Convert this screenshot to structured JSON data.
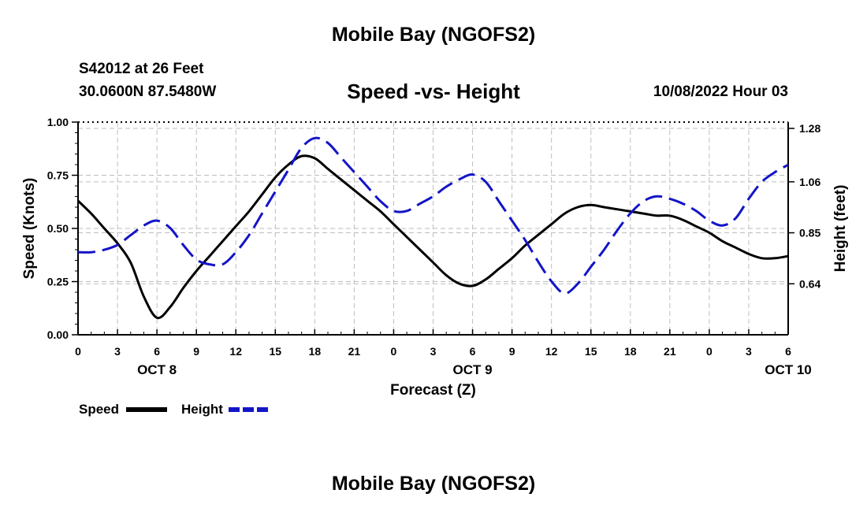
{
  "header": {
    "title": "Mobile Bay (NGOFS2)",
    "station": "S42012 at 26 Feet",
    "coords": "30.0600N  87.5480W",
    "subtitle": "Speed -vs- Height",
    "datetime": "10/08/2022 Hour 03"
  },
  "footer": {
    "title": "Mobile Bay (NGOFS2)"
  },
  "chart_data": {
    "type": "line",
    "title": "Speed -vs- Height",
    "xlabel": "Forecast (Z)",
    "ylabel_left": "Speed (Knots)",
    "ylabel_right": "Height (feet)",
    "x_ticks": [
      "0",
      "3",
      "6",
      "9",
      "12",
      "15",
      "18",
      "21",
      "0",
      "3",
      "6",
      "9",
      "12",
      "15",
      "18",
      "21",
      "0",
      "3",
      "6"
    ],
    "date_labels": [
      {
        "label": "OCT 8",
        "hour": 6
      },
      {
        "label": "OCT 9",
        "hour": 30
      },
      {
        "label": "OCT 10",
        "hour": 54
      }
    ],
    "xlim": [
      0,
      54
    ],
    "ylim_left": [
      0,
      1.0
    ],
    "yticks_left": [
      "0.00",
      "0.25",
      "0.50",
      "0.75",
      "1.00"
    ],
    "ylim_right": [
      0.43,
      1.306
    ],
    "yticks_right": [
      {
        "value": 0.64,
        "label": "0.64"
      },
      {
        "value": 0.85,
        "label": "0.85"
      },
      {
        "value": 1.06,
        "label": "1.06"
      },
      {
        "value": 1.28,
        "label": "1.28"
      }
    ],
    "grid": true,
    "legend_position": "bottom-left",
    "series": [
      {
        "name": "Speed",
        "axis": "left",
        "color": "#000000",
        "style": "solid",
        "points": [
          [
            0,
            0.63
          ],
          [
            1,
            0.57
          ],
          [
            2,
            0.5
          ],
          [
            3,
            0.43
          ],
          [
            4,
            0.34
          ],
          [
            5,
            0.18
          ],
          [
            6,
            0.08
          ],
          [
            7,
            0.13
          ],
          [
            8,
            0.22
          ],
          [
            9,
            0.3
          ],
          [
            10,
            0.37
          ],
          [
            11,
            0.44
          ],
          [
            12,
            0.51
          ],
          [
            13,
            0.58
          ],
          [
            14,
            0.66
          ],
          [
            15,
            0.74
          ],
          [
            16,
            0.8
          ],
          [
            17,
            0.84
          ],
          [
            18,
            0.83
          ],
          [
            19,
            0.78
          ],
          [
            20,
            0.73
          ],
          [
            21,
            0.68
          ],
          [
            22,
            0.63
          ],
          [
            23,
            0.58
          ],
          [
            24,
            0.52
          ],
          [
            25,
            0.46
          ],
          [
            26,
            0.4
          ],
          [
            27,
            0.34
          ],
          [
            28,
            0.28
          ],
          [
            29,
            0.24
          ],
          [
            30,
            0.23
          ],
          [
            31,
            0.26
          ],
          [
            32,
            0.31
          ],
          [
            33,
            0.36
          ],
          [
            34,
            0.42
          ],
          [
            35,
            0.47
          ],
          [
            36,
            0.52
          ],
          [
            37,
            0.57
          ],
          [
            38,
            0.6
          ],
          [
            39,
            0.61
          ],
          [
            40,
            0.6
          ],
          [
            41,
            0.59
          ],
          [
            42,
            0.58
          ],
          [
            43,
            0.57
          ],
          [
            44,
            0.56
          ],
          [
            45,
            0.56
          ],
          [
            46,
            0.54
          ],
          [
            47,
            0.51
          ],
          [
            48,
            0.48
          ],
          [
            49,
            0.44
          ],
          [
            50,
            0.41
          ],
          [
            51,
            0.38
          ],
          [
            52,
            0.36
          ],
          [
            53,
            0.36
          ],
          [
            54,
            0.37
          ]
        ]
      },
      {
        "name": "Height",
        "axis": "right",
        "color": "#1414c8",
        "style": "dashed",
        "points": [
          [
            0,
            0.77
          ],
          [
            1,
            0.77
          ],
          [
            2,
            0.78
          ],
          [
            3,
            0.8
          ],
          [
            4,
            0.84
          ],
          [
            5,
            0.88
          ],
          [
            6,
            0.9
          ],
          [
            7,
            0.87
          ],
          [
            8,
            0.8
          ],
          [
            9,
            0.74
          ],
          [
            10,
            0.72
          ],
          [
            11,
            0.72
          ],
          [
            12,
            0.77
          ],
          [
            13,
            0.84
          ],
          [
            14,
            0.93
          ],
          [
            15,
            1.02
          ],
          [
            16,
            1.11
          ],
          [
            17,
            1.2
          ],
          [
            18,
            1.24
          ],
          [
            19,
            1.22
          ],
          [
            20,
            1.16
          ],
          [
            21,
            1.1
          ],
          [
            22,
            1.04
          ],
          [
            23,
            0.98
          ],
          [
            24,
            0.94
          ],
          [
            25,
            0.94
          ],
          [
            26,
            0.97
          ],
          [
            27,
            1.0
          ],
          [
            28,
            1.04
          ],
          [
            29,
            1.07
          ],
          [
            30,
            1.09
          ],
          [
            31,
            1.06
          ],
          [
            32,
            0.98
          ],
          [
            33,
            0.9
          ],
          [
            34,
            0.82
          ],
          [
            35,
            0.73
          ],
          [
            36,
            0.65
          ],
          [
            37,
            0.6
          ],
          [
            38,
            0.64
          ],
          [
            39,
            0.71
          ],
          [
            40,
            0.78
          ],
          [
            41,
            0.86
          ],
          [
            42,
            0.93
          ],
          [
            43,
            0.98
          ],
          [
            44,
            1.0
          ],
          [
            45,
            0.99
          ],
          [
            46,
            0.97
          ],
          [
            47,
            0.94
          ],
          [
            48,
            0.9
          ],
          [
            49,
            0.88
          ],
          [
            50,
            0.91
          ],
          [
            51,
            0.99
          ],
          [
            52,
            1.06
          ],
          [
            53,
            1.1
          ],
          [
            54,
            1.13
          ]
        ]
      }
    ]
  }
}
